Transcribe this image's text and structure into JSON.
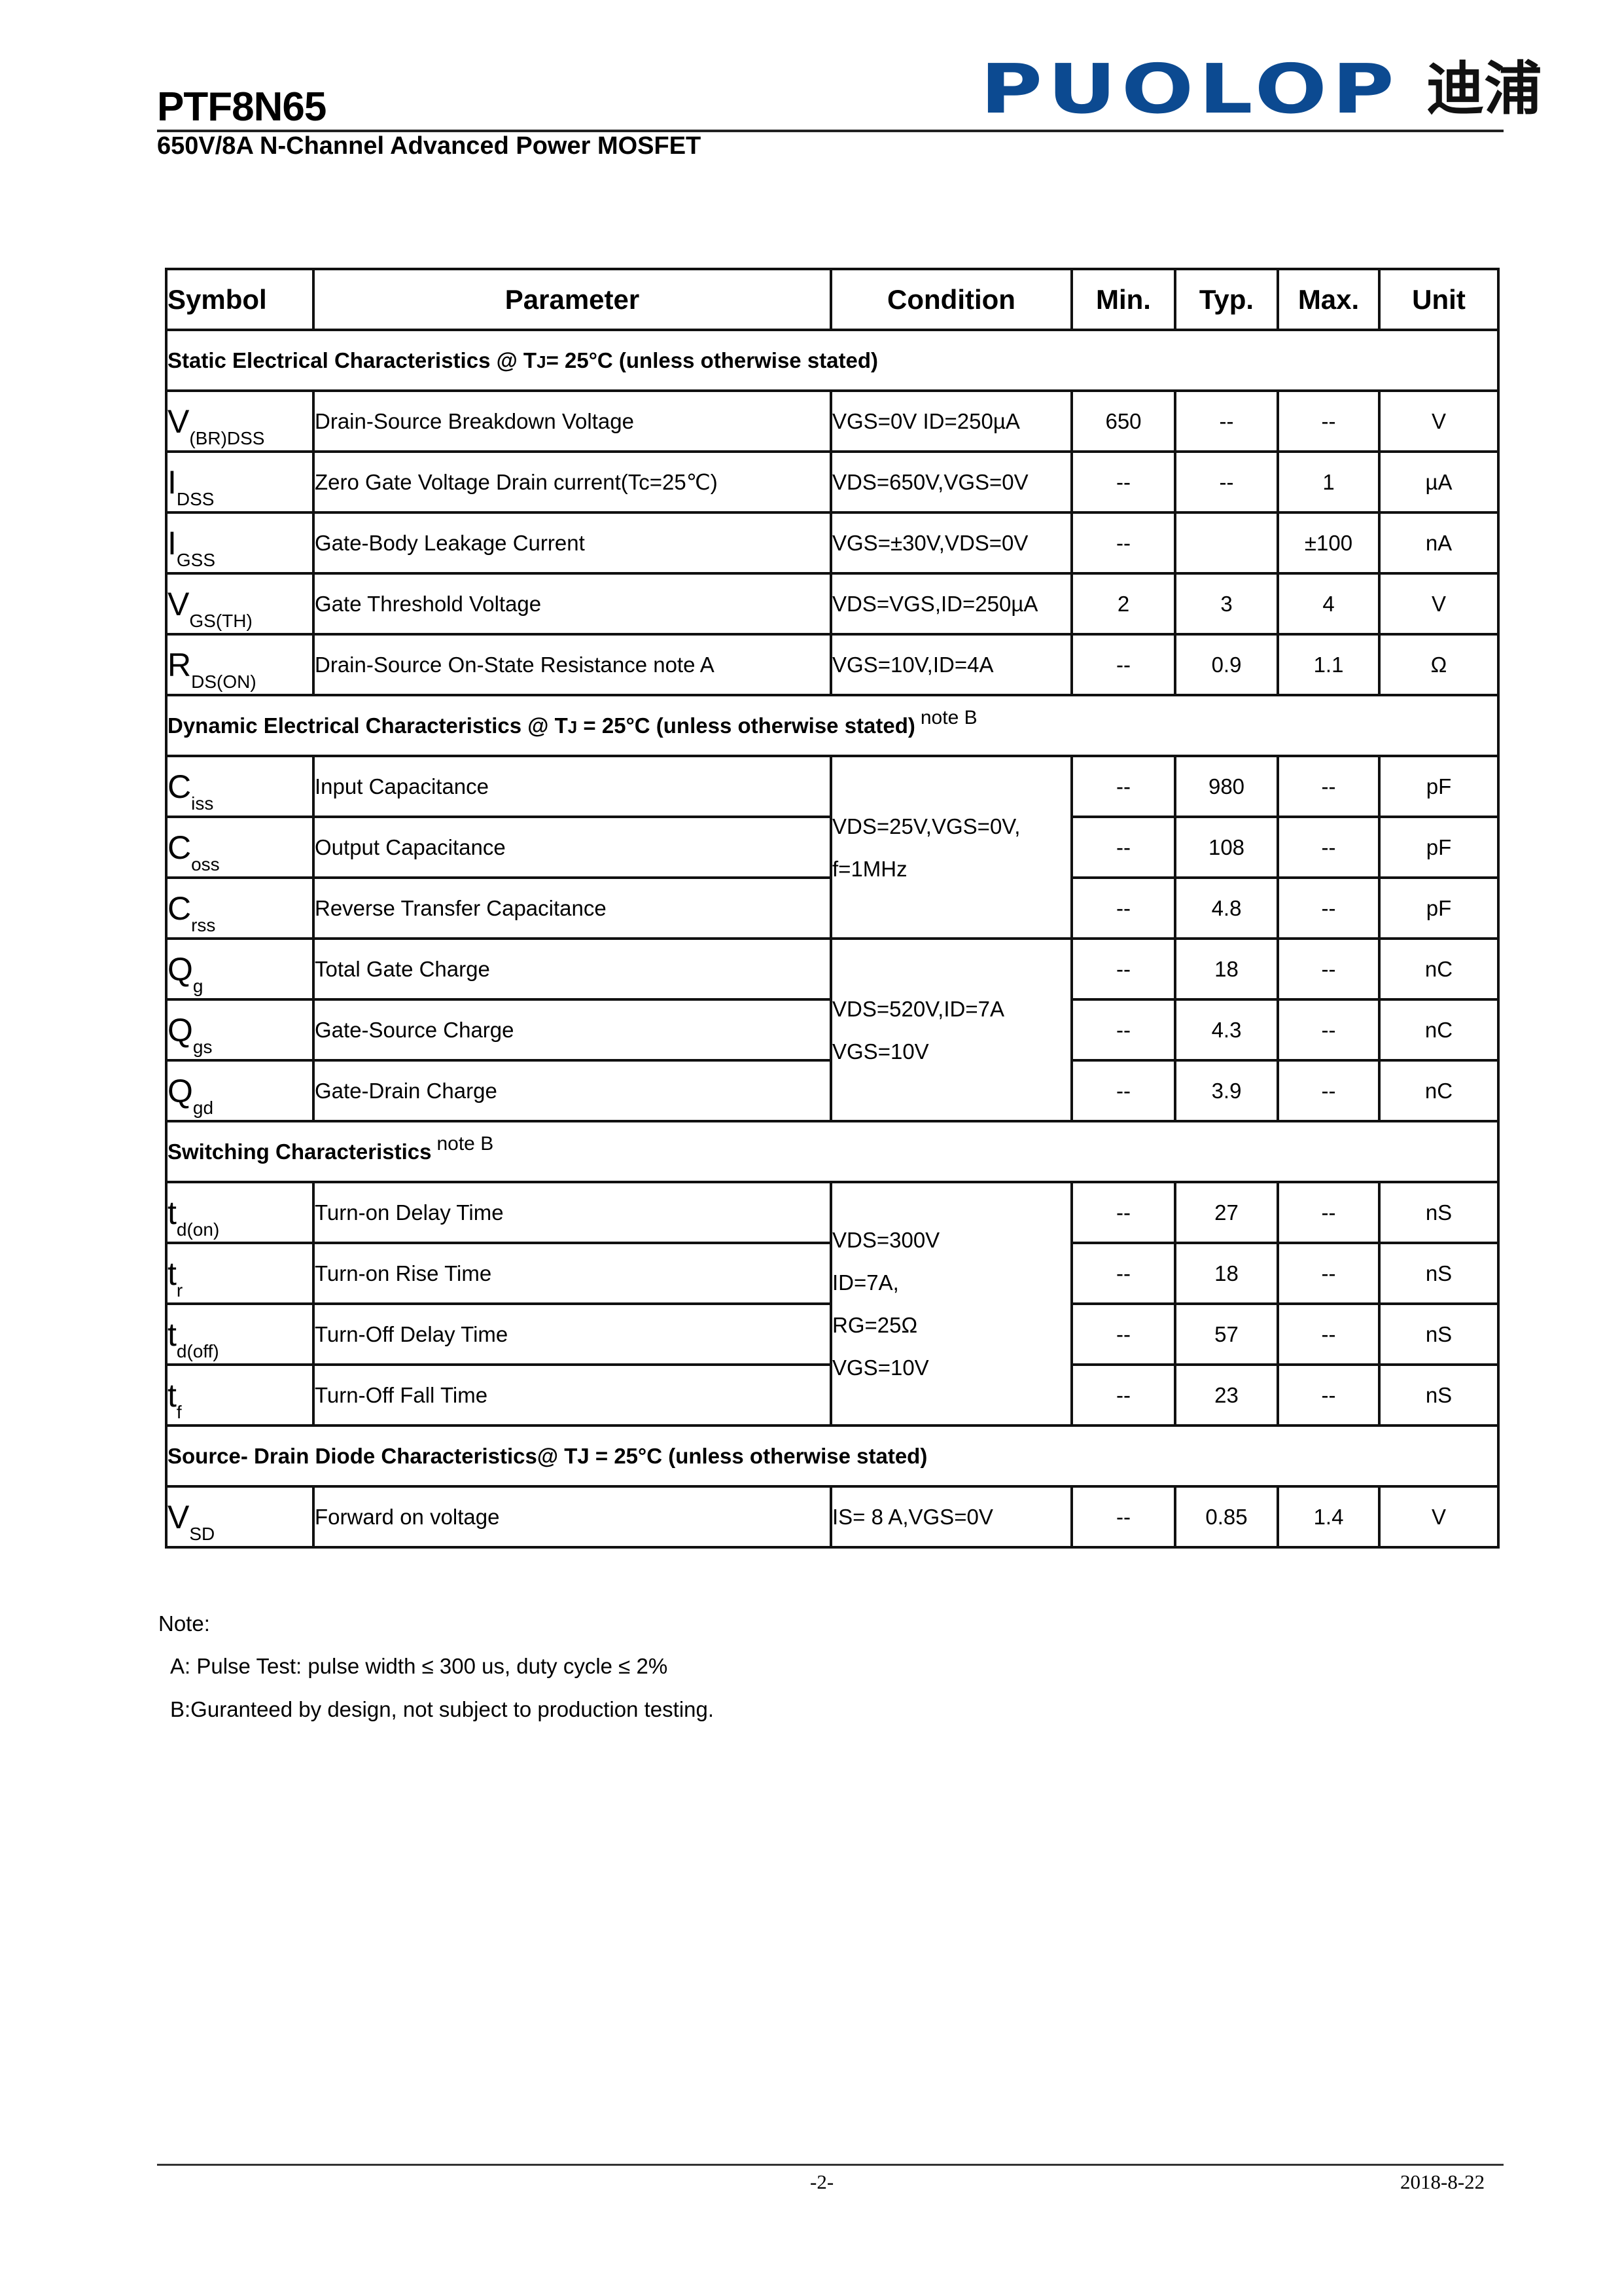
{
  "header": {
    "part_number": "PTF8N65",
    "subtitle": "650V/8A  N-Channel Advanced Power MOSFET",
    "logo_text": "PUOLOP",
    "logo_cn": "迪浦",
    "brand_color": "#0c4a91"
  },
  "table": {
    "headers": [
      "Symbol",
      "Parameter",
      "Condition",
      "Min.",
      "Typ.",
      "Max.",
      "Unit"
    ],
    "sections": [
      {
        "title": "Static Electrical Characteristics @ T",
        "title_sub": "J",
        "title_rest": "= 25°C (unless otherwise stated)",
        "rows": [
          {
            "sym": "V",
            "sub": "(BR)DSS",
            "param": "Drain-Source Breakdown Voltage",
            "cond": [
              "VGS=0V ID=250µA"
            ],
            "span": 1,
            "min": "650",
            "typ": "--",
            "max": "--",
            "unit": "V"
          },
          {
            "sym": "I",
            "sub": "DSS",
            "param": "Zero Gate Voltage Drain current(Tc=25℃)",
            "cond": [
              "VDS=650V,VGS=0V"
            ],
            "span": 1,
            "min": "--",
            "typ": "--",
            "max": "1",
            "unit": "µA"
          },
          {
            "sym": "I",
            "sub": "GSS",
            "param": "Gate-Body Leakage Current",
            "cond": [
              "VGS=±30V,VDS=0V"
            ],
            "span": 1,
            "min": "--",
            "typ": "",
            "max": "±100",
            "unit": "nA"
          },
          {
            "sym": "V",
            "sub": "GS(TH)",
            "param": "Gate Threshold Voltage",
            "cond": [
              "VDS=VGS,ID=250µA"
            ],
            "span": 1,
            "min": "2",
            "typ": "3",
            "max": "4",
            "unit": "V"
          },
          {
            "sym": "R",
            "sub": "DS(ON)",
            "param": "Drain-Source On-State Resistance    note A",
            "cond": [
              "VGS=10V,ID=4A"
            ],
            "span": 1,
            "min": "--",
            "typ": "0.9",
            "max": "1.1",
            "unit": "Ω"
          }
        ]
      },
      {
        "title": "Dynamic Electrical Characteristics @ T",
        "title_sub": "J",
        "title_rest": " = 25°C (unless otherwise stated)",
        "note": "note B",
        "rows": [
          {
            "sym": "C",
            "sub": "iss",
            "param": "Input Capacitance",
            "cond": [
              "VDS=25V,VGS=0V,",
              "f=1MHz"
            ],
            "span": 3,
            "min": "--",
            "typ": "980",
            "max": "--",
            "unit": "pF"
          },
          {
            "sym": "C",
            "sub": "oss",
            "param": "Output Capacitance",
            "min": "--",
            "typ": "108",
            "max": "--",
            "unit": "pF"
          },
          {
            "sym": "C",
            "sub": "rss",
            "param": "Reverse Transfer Capacitance",
            "min": "--",
            "typ": "4.8",
            "max": "--",
            "unit": "pF"
          },
          {
            "sym": "Q",
            "sub": "g",
            "param": "Total Gate Charge",
            "cond": [
              "VDS=520V,ID=7A",
              "VGS=10V"
            ],
            "span": 3,
            "min": "--",
            "typ": "18",
            "max": "--",
            "unit": "nC"
          },
          {
            "sym": "Q",
            "sub": "gs",
            "param": "Gate-Source Charge",
            "min": "--",
            "typ": "4.3",
            "max": "--",
            "unit": "nC"
          },
          {
            "sym": "Q",
            "sub": "gd",
            "param": "Gate-Drain Charge",
            "min": "--",
            "typ": "3.9",
            "max": "--",
            "unit": "nC"
          }
        ]
      },
      {
        "title": "Switching Characteristics",
        "note": "note B",
        "rows": [
          {
            "sym": "t",
            "sub": "d(on)",
            "param": "Turn-on Delay Time",
            "cond": [
              "VDS=300V",
              "ID=7A,",
              "RG=25Ω",
              "VGS=10V"
            ],
            "span": 4,
            "min": "--",
            "typ": "27",
            "max": "--",
            "unit": "nS"
          },
          {
            "sym": "t",
            "sub": "r",
            "param": "Turn-on Rise Time",
            "min": "--",
            "typ": "18",
            "max": "--",
            "unit": "nS"
          },
          {
            "sym": "t",
            "sub": "d(off)",
            "param": "Turn-Off Delay Time",
            "min": "--",
            "typ": "57",
            "max": "--",
            "unit": "nS"
          },
          {
            "sym": "t",
            "sub": "f",
            "param": "Turn-Off Fall Time",
            "min": "--",
            "typ": "23",
            "max": "--",
            "unit": "nS"
          }
        ]
      },
      {
        "title": "Source- Drain Diode Characteristics@ TJ = 25°C (unless otherwise stated)",
        "rows": [
          {
            "sym": "V",
            "sub": "SD",
            "param": "Forward on voltage",
            "cond": [
              "IS= 8 A,VGS=0V"
            ],
            "span": 1,
            "min": "--",
            "typ": "0.85",
            "max": "1.4",
            "unit": "V"
          }
        ]
      }
    ]
  },
  "notes": {
    "heading": "Note:",
    "items": [
      "A: Pulse Test: pulse width ≤ 300 us, duty cycle ≤ 2%",
      "B:Guranteed by design, not subject to production testing."
    ]
  },
  "footer": {
    "page": "-2-",
    "date": "2018-8-22"
  }
}
